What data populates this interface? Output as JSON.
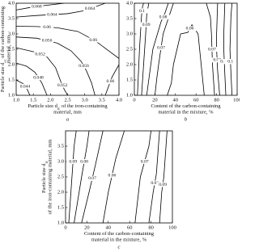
{
  "chart_data": [
    {
      "type": "contour",
      "panel": "a",
      "xlabel": [
        [
          "Particle size d",
          "ic",
          " of the iron-containing"
        ],
        [
          "material, mm"
        ]
      ],
      "ylabel": [
        [
          "Particle size d",
          "cc",
          " of the carbon-containing"
        ],
        [
          "material, mm"
        ]
      ],
      "xlim": [
        1,
        4
      ],
      "ylim": [
        1,
        4
      ],
      "xticks": [
        {
          "value": 1,
          "label": "1.0"
        },
        {
          "value": 1.5,
          "label": "1.5"
        },
        {
          "value": 2,
          "label": "2.0"
        },
        {
          "value": 2.5,
          "label": "2.5"
        },
        {
          "value": 3,
          "label": "3.0"
        },
        {
          "value": 3.5,
          "label": "3.5"
        },
        {
          "value": 4,
          "label": "4.0"
        }
      ],
      "yticks": [
        {
          "value": 1,
          "label": "1.0"
        },
        {
          "value": 1.5,
          "label": "1.5"
        },
        {
          "value": 2,
          "label": "2.0"
        },
        {
          "value": 2.5,
          "label": "2.5"
        },
        {
          "value": 3,
          "label": "3.0"
        },
        {
          "value": 3.5,
          "label": "3.5"
        },
        {
          "value": 4,
          "label": "4.0"
        }
      ],
      "contours": [
        {
          "level": 0.068,
          "x": [
            1.0,
            1.4,
            1.8,
            2.4
          ],
          "y": [
            3.78,
            3.86,
            3.92,
            4.0
          ]
        },
        {
          "level": 0.064,
          "x": [
            1.0,
            1.6,
            2.5
          ],
          "y": [
            3.55,
            3.6,
            3.66
          ]
        },
        {
          "level": 0.064,
          "x": [
            2.5,
            3.0,
            3.3,
            3.6
          ],
          "y": [
            3.66,
            3.76,
            3.88,
            4.0
          ]
        },
        {
          "level": 0.06,
          "x": [
            1.0,
            1.6,
            2.2
          ],
          "y": [
            3.25,
            3.24,
            3.2
          ]
        },
        {
          "level": 0.06,
          "x": [
            2.2,
            2.8,
            3.1,
            3.4,
            3.7,
            4.0
          ],
          "y": [
            3.2,
            3.08,
            2.9,
            2.7,
            2.45,
            2.2
          ]
        },
        {
          "level": 0.056,
          "x": [
            1.0,
            1.6,
            2.2
          ],
          "y": [
            2.9,
            2.86,
            2.7
          ]
        },
        {
          "level": 0.056,
          "x": [
            2.2,
            2.6,
            2.9,
            3.05,
            3.2,
            3.3
          ],
          "y": [
            2.7,
            2.45,
            2.1,
            1.8,
            1.4,
            1.0
          ]
        },
        {
          "level": 0.052,
          "x": [
            1.0,
            1.5,
            1.9
          ],
          "y": [
            2.55,
            2.42,
            2.25
          ]
        },
        {
          "level": 0.052,
          "x": [
            1.9,
            2.15,
            2.3,
            2.4,
            2.5
          ],
          "y": [
            2.25,
            1.9,
            1.45,
            1.2,
            1.0
          ]
        },
        {
          "level": 0.048,
          "x": [
            1.0,
            1.3,
            1.55,
            1.75,
            1.9
          ],
          "y": [
            2.05,
            1.95,
            1.75,
            1.4,
            1.0
          ]
        },
        {
          "level": 0.044,
          "x": [
            1.0,
            1.2,
            1.32,
            1.4
          ],
          "y": [
            1.5,
            1.38,
            1.2,
            1.0
          ]
        },
        {
          "level": 0.06,
          "x": [
            3.6,
            3.7,
            3.8,
            4.0
          ],
          "y": [
            1.0,
            1.3,
            1.6,
            2.0
          ]
        }
      ]
    },
    {
      "type": "contour",
      "panel": "b",
      "xlabel": [
        [
          "Content of the carbon-containing"
        ],
        [
          "material in the mixture, %"
        ]
      ],
      "xlim": [
        0,
        100
      ],
      "ylim": [
        1,
        4
      ],
      "xticks": [
        0,
        20,
        40,
        60,
        80,
        100
      ],
      "yticks": [
        {
          "value": 1,
          "label": "1.0"
        },
        {
          "value": 1.5,
          "label": "1.5"
        },
        {
          "value": 2,
          "label": "2.0"
        },
        {
          "value": 2.5,
          "label": "2.5"
        },
        {
          "value": 3,
          "label": "3.0"
        },
        {
          "value": 3.5,
          "label": "3.5"
        },
        {
          "value": 4,
          "label": "4.0"
        }
      ],
      "contours": [
        {
          "level": 0.1,
          "x": [
            3,
            5,
            7,
            8,
            9
          ],
          "y": [
            1.0,
            2.5,
            3.6,
            3.9,
            4.0
          ]
        },
        {
          "level": 0.09,
          "x": [
            7,
            9,
            11,
            12,
            14
          ],
          "y": [
            1.0,
            2.0,
            3.0,
            3.6,
            4.0
          ]
        },
        {
          "level": 0.08,
          "x": [
            12,
            18,
            26,
            30,
            33
          ],
          "y": [
            1.0,
            2.5,
            3.4,
            3.7,
            4.0
          ]
        },
        {
          "level": 0.07,
          "x": [
            20,
            22,
            24,
            28,
            38
          ],
          "y": [
            1.0,
            1.6,
            2.1,
            3.0,
            4.0
          ]
        },
        {
          "level": 0.06,
          "x": [
            32,
            36,
            38,
            45,
            52,
            56,
            62,
            65,
            68
          ],
          "y": [
            1.0,
            1.4,
            2.0,
            3.0,
            3.05,
            3.3,
            3.0,
            2.0,
            1.0
          ]
        },
        {
          "level": 0.07,
          "x": [
            70,
            74,
            75,
            76,
            78
          ],
          "y": [
            4.0,
            3.55,
            3.0,
            2.0,
            1.0
          ]
        },
        {
          "level": 0.08,
          "x": [
            81,
            80,
            80,
            81,
            83
          ],
          "y": [
            4.0,
            3.0,
            2.5,
            1.8,
            1.0
          ]
        },
        {
          "level": 0.09,
          "x": [
            88,
            87,
            87,
            88,
            89
          ],
          "y": [
            4.0,
            3.0,
            2.5,
            1.7,
            1.0
          ]
        },
        {
          "level": 0.1,
          "x": [
            95,
            94,
            93,
            94,
            95
          ],
          "y": [
            4.0,
            3.6,
            2.5,
            1.7,
            1.0
          ]
        }
      ]
    },
    {
      "type": "contour",
      "panel": "c",
      "xlabel": [
        [
          "Content of the carbon-containing"
        ],
        [
          "material in the mixture, %"
        ]
      ],
      "ylabel": [
        [
          "Particle size d",
          "ic"
        ],
        [
          "of the iron-containing material, mm"
        ]
      ],
      "xlim": [
        0,
        100
      ],
      "ylim": [
        1,
        4
      ],
      "xticks": [
        0,
        20,
        40,
        60,
        80,
        100
      ],
      "yticks": [
        {
          "value": 1,
          "label": "1.0"
        },
        {
          "value": 1.5,
          "label": "1.5"
        },
        {
          "value": 2,
          "label": "2.0"
        },
        {
          "value": 2.5,
          "label": "2.5"
        },
        {
          "value": 3,
          "label": "3.0"
        },
        {
          "value": 3.5,
          "label": "3.5"
        }
      ],
      "contours": [
        {
          "level": 0.09,
          "x": [
            3,
            6,
            8,
            10
          ],
          "y": [
            1.0,
            2.5,
            3.5,
            4.0
          ]
        },
        {
          "level": 0.08,
          "x": [
            8,
            15,
            20,
            22
          ],
          "y": [
            1.0,
            2.5,
            3.5,
            4.0
          ]
        },
        {
          "level": 0.07,
          "x": [
            15,
            22,
            28,
            35
          ],
          "y": [
            1.0,
            2.0,
            2.9,
            4.0
          ]
        },
        {
          "level": 0.06,
          "x": [
            35,
            40,
            47,
            55
          ],
          "y": [
            1.0,
            2.0,
            3.1,
            4.0
          ]
        },
        {
          "level": 0.07,
          "x": [
            65,
            70,
            78,
            80
          ],
          "y": [
            1.0,
            2.5,
            3.5,
            4.0
          ]
        },
        {
          "level": 0.08,
          "x": [
            78,
            82,
            85,
            88
          ],
          "y": [
            1.0,
            2.0,
            2.6,
            4.0
          ]
        },
        {
          "level": 0.09,
          "x": [
            88,
            90,
            92,
            95
          ],
          "y": [
            1.0,
            2.0,
            2.5,
            4.0
          ]
        }
      ]
    }
  ]
}
